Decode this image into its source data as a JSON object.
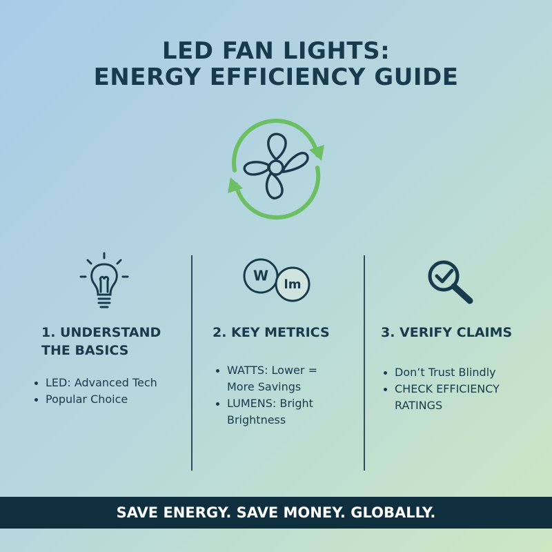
{
  "header": {
    "title_lines": [
      "LED FAN LIGHTS:",
      "ENERGY EFFICIENCY GUIDE"
    ]
  },
  "columns": [
    {
      "heading": "1. UNDERSTAND THE BASICS",
      "bullets": [
        "LED: Advanced Tech",
        "Popular Choice"
      ]
    },
    {
      "heading": "2. KEY METRICS",
      "icon_labels": [
        "W",
        "lm"
      ],
      "bullets": [
        "WATTS: Lower = More Savings",
        "LUMENS: Bright Brightness"
      ]
    },
    {
      "heading": "3. VERIFY CLAIMS",
      "bullets": [
        "Don’t Trust Blindly",
        "CHECK EFFICIENCY RATINGS"
      ]
    }
  ],
  "footer": {
    "text": "SAVE ENERGY. SAVE MONEY. GLOBALLY."
  }
}
